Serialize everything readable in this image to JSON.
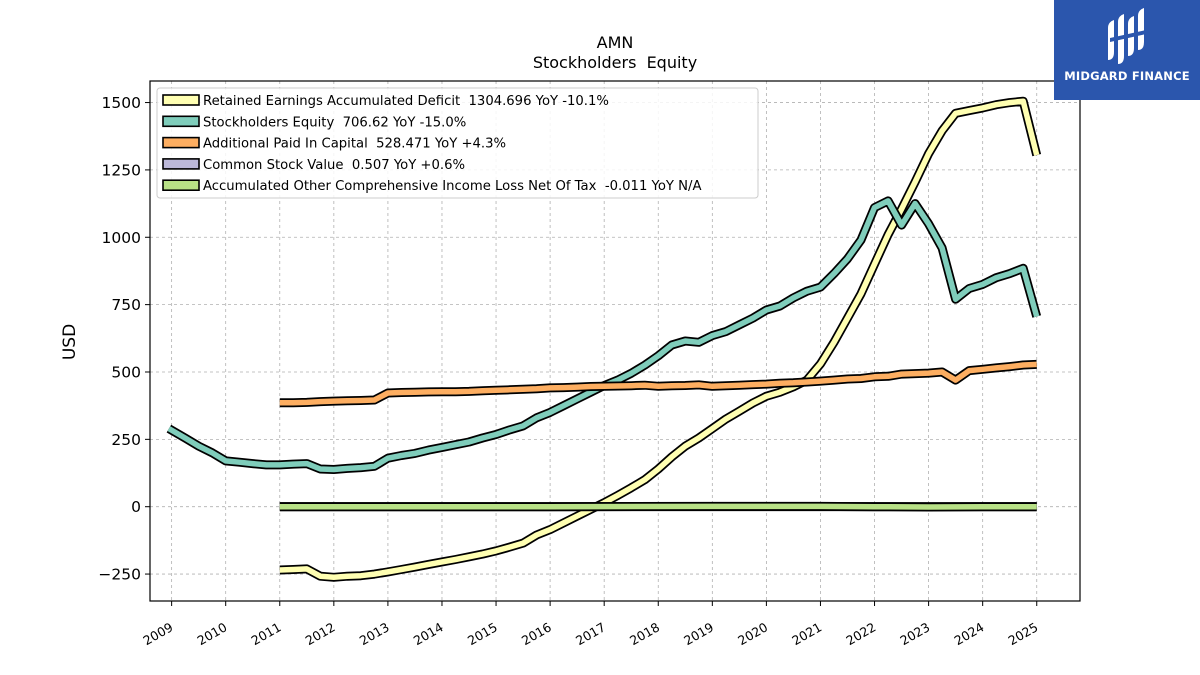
{
  "chart_data": {
    "type": "line",
    "title": "AMN",
    "subtitle": "Stockholders  Equity",
    "ylabel": "USD",
    "xlabel": "",
    "xlim": [
      2008.6,
      2025.8
    ],
    "ylim": [
      -350,
      1580
    ],
    "grid": true,
    "legend_position": "top-left",
    "x_ticks": [
      "2009",
      "2010",
      "2011",
      "2012",
      "2013",
      "2014",
      "2015",
      "2016",
      "2017",
      "2018",
      "2019",
      "2020",
      "2021",
      "2022",
      "2023",
      "2024",
      "2025"
    ],
    "y_ticks": [
      -250,
      0,
      250,
      500,
      750,
      1000,
      1250,
      1500
    ],
    "y_tick_labels": [
      "−250",
      "0",
      "250",
      "500",
      "750",
      "1000",
      "1250",
      "1500"
    ],
    "series": [
      {
        "name": "Retained Earnings Accumulated Deficit",
        "legend_label": "Retained Earnings Accumulated Deficit  1304.696 YoY -10.1%",
        "color": "#ffffb2",
        "x": [
          2011.0,
          2011.25,
          2011.5,
          2011.75,
          2012.0,
          2012.25,
          2012.5,
          2012.75,
          2013.0,
          2013.25,
          2013.5,
          2013.75,
          2014.0,
          2014.25,
          2014.5,
          2014.75,
          2015.0,
          2015.25,
          2015.5,
          2015.75,
          2016.0,
          2016.25,
          2016.5,
          2016.75,
          2017.0,
          2017.25,
          2017.5,
          2017.75,
          2018.0,
          2018.25,
          2018.5,
          2018.75,
          2019.0,
          2019.25,
          2019.5,
          2019.75,
          2020.0,
          2020.25,
          2020.5,
          2020.75,
          2021.0,
          2021.25,
          2021.5,
          2021.75,
          2022.0,
          2022.25,
          2022.5,
          2022.75,
          2023.0,
          2023.25,
          2023.5,
          2023.75,
          2024.0,
          2024.25,
          2024.5,
          2024.75,
          2025.0
        ],
        "values": [
          -235,
          -233,
          -231,
          -258,
          -262,
          -258,
          -256,
          -250,
          -242,
          -233,
          -224,
          -214,
          -205,
          -196,
          -186,
          -176,
          -164,
          -150,
          -135,
          -105,
          -85,
          -60,
          -35,
          -10,
          15,
          42,
          70,
          100,
          140,
          185,
          225,
          255,
          290,
          325,
          355,
          385,
          410,
          425,
          445,
          470,
          530,
          610,
          700,
          790,
          900,
          1010,
          1105,
          1205,
          1310,
          1395,
          1460,
          1470,
          1480,
          1492,
          1500,
          1505,
          1305
        ]
      },
      {
        "name": "Stockholders Equity",
        "legend_label": "Stockholders Equity  706.62 YoY -15.0%",
        "color": "#7fcdbb",
        "x": [
          2008.95,
          2009.25,
          2009.5,
          2009.75,
          2010.0,
          2010.25,
          2010.5,
          2010.75,
          2011.0,
          2011.25,
          2011.5,
          2011.75,
          2012.0,
          2012.25,
          2012.5,
          2012.75,
          2013.0,
          2013.25,
          2013.5,
          2013.75,
          2014.0,
          2014.25,
          2014.5,
          2014.75,
          2015.0,
          2015.25,
          2015.5,
          2015.75,
          2016.0,
          2016.25,
          2016.5,
          2016.75,
          2017.0,
          2017.25,
          2017.5,
          2017.75,
          2018.0,
          2018.25,
          2018.5,
          2018.75,
          2019.0,
          2019.25,
          2019.5,
          2019.75,
          2020.0,
          2020.25,
          2020.5,
          2020.75,
          2021.0,
          2021.25,
          2021.5,
          2021.75,
          2022.0,
          2022.25,
          2022.5,
          2022.75,
          2023.0,
          2023.25,
          2023.5,
          2023.75,
          2024.0,
          2024.25,
          2024.5,
          2024.75,
          2025.0
        ],
        "values": [
          290,
          255,
          225,
          200,
          170,
          165,
          160,
          155,
          155,
          158,
          160,
          140,
          138,
          142,
          145,
          150,
          180,
          190,
          198,
          210,
          220,
          230,
          240,
          255,
          268,
          285,
          300,
          330,
          350,
          375,
          400,
          425,
          450,
          470,
          495,
          525,
          560,
          600,
          615,
          610,
          635,
          650,
          675,
          700,
          730,
          745,
          775,
          800,
          815,
          865,
          920,
          990,
          1110,
          1135,
          1045,
          1125,
          1050,
          960,
          770,
          810,
          825,
          850,
          865,
          885,
          706
        ]
      },
      {
        "name": "Additional Paid In Capital",
        "legend_label": "Additional Paid In Capital  528.471 YoY +4.3%",
        "color": "#fdae61",
        "x": [
          2011.0,
          2011.25,
          2011.5,
          2011.75,
          2012.0,
          2012.25,
          2012.5,
          2012.75,
          2013.0,
          2013.25,
          2013.5,
          2013.75,
          2014.0,
          2014.25,
          2014.5,
          2014.75,
          2015.0,
          2015.25,
          2015.5,
          2015.75,
          2016.0,
          2016.25,
          2016.5,
          2016.75,
          2017.0,
          2017.25,
          2017.5,
          2017.75,
          2018.0,
          2018.25,
          2018.5,
          2018.75,
          2019.0,
          2019.25,
          2019.5,
          2019.75,
          2020.0,
          2020.25,
          2020.5,
          2020.75,
          2021.0,
          2021.25,
          2021.5,
          2021.75,
          2022.0,
          2022.25,
          2022.5,
          2022.75,
          2023.0,
          2023.25,
          2023.5,
          2023.75,
          2024.0,
          2024.25,
          2024.5,
          2024.75,
          2025.0
        ],
        "values": [
          386,
          386,
          387,
          390,
          392,
          393,
          394,
          396,
          422,
          424,
          425,
          426,
          427,
          427,
          428,
          430,
          432,
          434,
          436,
          438,
          441,
          442,
          444,
          446,
          447,
          448,
          449,
          451,
          447,
          449,
          450,
          452,
          447,
          449,
          451,
          453,
          455,
          458,
          460,
          463,
          466,
          470,
          474,
          476,
          482,
          484,
          492,
          494,
          496,
          500,
          470,
          505,
          510,
          515,
          520,
          526,
          528
        ]
      },
      {
        "name": "Common Stock Value",
        "legend_label": "Common Stock Value  0.507 YoY +0.6%",
        "color": "#bcb8d9",
        "x": [
          2011.0,
          2025.0
        ],
        "values": [
          0.5,
          0.507
        ]
      },
      {
        "name": "Accumulated Other Comprehensive Income Loss Net Of Tax",
        "legend_label": "Accumulated Other Comprehensive Income Loss Net Of Tax  -0.011 YoY N/A",
        "color": "#b8e186",
        "x": [
          2011.0,
          2016.0,
          2019.0,
          2021.0,
          2022.0,
          2023.0,
          2024.0,
          2025.0
        ],
        "values": [
          0,
          0,
          1,
          1,
          0,
          -1,
          0,
          -0.011
        ]
      }
    ]
  },
  "logo": {
    "text": "MIDGARD FINANCE"
  }
}
